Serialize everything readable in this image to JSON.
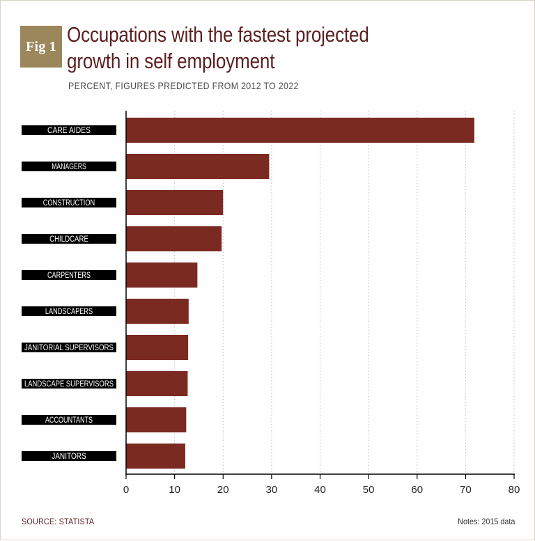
{
  "badge": {
    "label": "Fig 1"
  },
  "chart_data": {
    "type": "bar",
    "orientation": "horizontal",
    "title_lines": [
      "Occupations with the fastest projected",
      "growth in self employment"
    ],
    "subtitle": "PERCENT, FIGURES PREDICTED FROM 2012 TO 2022",
    "categories": [
      "CARE AIDES",
      "MANAGERS",
      "CONSTRUCTION",
      "CHILDCARE",
      "CARPENTERS",
      "LANDSCAPERS",
      "JANITORIAL SUPERVISORS",
      "LANDSCAPE SUPERVISORS",
      "ACCOUNTANTS",
      "JANITORS"
    ],
    "values": [
      71.8,
      29.5,
      20.0,
      19.7,
      14.7,
      12.9,
      12.8,
      12.7,
      12.4,
      12.2
    ],
    "xlim": [
      0,
      80
    ],
    "xticks": [
      0,
      10,
      20,
      30,
      40,
      50,
      60,
      70,
      80
    ],
    "grid": "vertical dotted",
    "bar_color": "#7b2a22"
  },
  "footer": {
    "source": "SOURCE: STATISTA",
    "notes": "Notes: 2015 data"
  },
  "colors": {
    "badge": "#9c865b",
    "title": "#5b1f1f",
    "bar": "#7b2a22",
    "label_bg": "#000000"
  }
}
